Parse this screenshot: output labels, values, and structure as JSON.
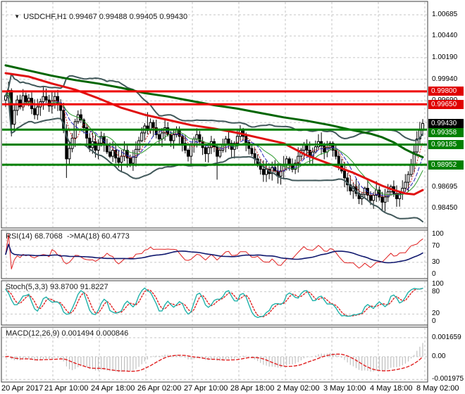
{
  "chart_data": {
    "type": "candlestick",
    "symbol": "USDCHF",
    "timeframe": "H1",
    "title": "USDCHF,H1 0.99467 0.99488 0.99405 0.99430",
    "ohlc_display": {
      "open": "0.99467",
      "high": "0.99488",
      "low": "0.99405",
      "close": "0.99430"
    },
    "x_axis": {
      "labels": [
        "20 Apr 2017",
        "21 Apr 10:00",
        "24 Apr 18:00",
        "26 Apr 02:00",
        "27 Apr 10:00",
        "28 Apr 18:00",
        "2 May 02:00",
        "3 May 10:00",
        "4 May 18:00",
        "8 May 02:00"
      ]
    },
    "y_axis": {
      "tick_labels": [
        "1.00685",
        "1.00440",
        "1.00190",
        "0.99940",
        "0.99690",
        "0.99440",
        "0.99190",
        "0.98940",
        "0.98695",
        "0.98450"
      ],
      "price_top": 1.00839,
      "price_bottom": 0.98222
    },
    "first_open": 0.997,
    "closes": [
      0.9975,
      0.9981,
      0.9942,
      0.9958,
      0.997,
      0.9962,
      0.9975,
      0.9968,
      0.9972,
      0.996,
      0.9953,
      0.9962,
      0.9968,
      0.9974,
      0.997,
      0.9963,
      0.9969,
      0.9974,
      0.9966,
      0.9958,
      0.9935,
      0.9902,
      0.9914,
      0.9926,
      0.9945,
      0.9953,
      0.9947,
      0.9938,
      0.9926,
      0.9915,
      0.9922,
      0.9912,
      0.992,
      0.9928,
      0.9918,
      0.991,
      0.9905,
      0.9912,
      0.9903,
      0.9898,
      0.9905,
      0.9912,
      0.9903,
      0.9897,
      0.9904,
      0.9913,
      0.9923,
      0.9932,
      0.994,
      0.9935,
      0.9944,
      0.9938,
      0.993,
      0.9925,
      0.9932,
      0.9938,
      0.993,
      0.9923,
      0.993,
      0.9936,
      0.9928,
      0.992,
      0.9912,
      0.9905,
      0.9918,
      0.9925,
      0.993,
      0.9922,
      0.9915,
      0.9908,
      0.9915,
      0.9922,
      0.9916,
      0.9905,
      0.9912,
      0.9918,
      0.9925,
      0.992,
      0.9913,
      0.992,
      0.9928,
      0.9935,
      0.9928,
      0.9921,
      0.9914,
      0.9908,
      0.9902,
      0.9896,
      0.989,
      0.9884,
      0.989,
      0.9885,
      0.9892,
      0.9888,
      0.9882,
      0.9888,
      0.9895,
      0.9902,
      0.9896,
      0.989,
      0.9897,
      0.9905,
      0.9912,
      0.9918,
      0.9912,
      0.9905,
      0.991,
      0.9916,
      0.9922,
      0.9917,
      0.991,
      0.9915,
      0.992,
      0.9912,
      0.9905,
      0.9896,
      0.9888,
      0.988,
      0.9872,
      0.9865,
      0.987,
      0.9862,
      0.9856,
      0.9861,
      0.9868,
      0.986,
      0.9854,
      0.986,
      0.9866,
      0.9858,
      0.9852,
      0.9858,
      0.9864,
      0.987,
      0.9862,
      0.9856,
      0.9862,
      0.9868,
      0.9875,
      0.9884,
      0.9896,
      0.991,
      0.9925,
      0.9935,
      0.9943
    ],
    "wick_overrides": {
      "2": {
        "low": 0.9928
      },
      "21": {
        "low": 0.988
      },
      "49": {
        "high": 0.9956
      },
      "73": {
        "low": 0.9878
      },
      "144": {
        "high": 0.9948
      }
    },
    "levels": [
      {
        "price": 0.998,
        "label": "0.99800",
        "type": "resistance"
      },
      {
        "price": 0.9965,
        "label": "0.99650",
        "type": "resistance"
      },
      {
        "price": 0.9943,
        "label": "0.99430",
        "type": "current"
      },
      {
        "price": 0.99358,
        "label": "0.99358",
        "type": "support"
      },
      {
        "price": 0.99185,
        "label": "0.99185",
        "type": "support"
      },
      {
        "price": 0.98952,
        "label": "0.98952",
        "type": "support"
      }
    ],
    "overlays": {
      "bollinger": {
        "period": 34,
        "deviation": 2
      },
      "ma_fast": [
        {
          "period": 5,
          "style": "dotted",
          "color": "#c62828"
        },
        {
          "period": 8,
          "style": "dashed",
          "color": "#2626b8"
        },
        {
          "period": 13,
          "style": "solid",
          "color": "#2f9b2f"
        }
      ],
      "ma_red_anchors": [
        [
          0,
          1.0001
        ],
        [
          8,
          0.9997
        ],
        [
          16,
          0.9989
        ],
        [
          24,
          0.9982
        ],
        [
          32,
          0.9972
        ],
        [
          40,
          0.9961
        ],
        [
          48,
          0.9953
        ],
        [
          56,
          0.9947
        ],
        [
          64,
          0.9941
        ],
        [
          72,
          0.9937
        ],
        [
          80,
          0.9932
        ],
        [
          88,
          0.9926
        ],
        [
          96,
          0.992
        ],
        [
          100,
          0.9913
        ],
        [
          104,
          0.9906
        ],
        [
          112,
          0.9896
        ],
        [
          120,
          0.9886
        ],
        [
          126,
          0.9877
        ],
        [
          130,
          0.9871
        ],
        [
          134,
          0.9866
        ],
        [
          138,
          0.9862
        ],
        [
          141,
          0.9861
        ],
        [
          144,
          0.9866
        ]
      ],
      "ma_green_anchors": [
        [
          0,
          1.001
        ],
        [
          8,
          1.0004
        ],
        [
          16,
          0.9998
        ],
        [
          24,
          0.9993
        ],
        [
          32,
          0.9989
        ],
        [
          40,
          0.9984
        ],
        [
          48,
          0.9978
        ],
        [
          56,
          0.9974
        ],
        [
          64,
          0.9969
        ],
        [
          72,
          0.9964
        ],
        [
          80,
          0.996
        ],
        [
          88,
          0.9955
        ],
        [
          96,
          0.995
        ],
        [
          104,
          0.9946
        ],
        [
          112,
          0.9941
        ],
        [
          120,
          0.9935
        ],
        [
          126,
          0.9931
        ],
        [
          130,
          0.9927
        ],
        [
          134,
          0.9921
        ],
        [
          138,
          0.9913
        ],
        [
          141,
          0.9908
        ],
        [
          144,
          0.9904
        ]
      ]
    },
    "panels": {
      "rsi": {
        "label": "RSI(14) 68.7068  ->MA(18) 60.4773",
        "period": 14,
        "ma_period": 18,
        "ticks": [
          "100",
          "70",
          "30",
          "0"
        ],
        "last": 68.7068,
        "ma_last": 60.4773
      },
      "stoch": {
        "label": "Stoch(5,3,3) 93.8700 91.8227",
        "k": 5,
        "slow": 3,
        "d": 3,
        "ticks": [
          "100",
          "80",
          "20",
          "0"
        ],
        "last_k": 93.87,
        "last_d": 91.8227
      },
      "macd": {
        "label": "MACD(12,26,9) 0.001494 0.000846",
        "fast": 12,
        "slow": 26,
        "signal": 9,
        "ticks": [
          "0.001659",
          "0.00",
          "-0.001975"
        ],
        "tick_values": [
          0.001659,
          0,
          -0.001975
        ],
        "last_main": 0.001494,
        "last_signal": 0.000846
      }
    },
    "colors": {
      "background": "#ffffff",
      "border": "#3c3c3c",
      "grid": "#c6c6c6",
      "candle": "#000000",
      "bollinger": "#41585a",
      "ma_red": "#e01010",
      "ma_green": "#006600",
      "level_resistance": "#ee0000",
      "level_support": "#008000",
      "badge_resistance": "#e00000",
      "badge_support": "#008000",
      "badge_current": "#000000",
      "rsi_line": "#e02020",
      "rsi_ma": "#10186e",
      "stoch_k": "#20b2aa",
      "stoch_d": "#e02020",
      "macd_hist": "#b6b6b6",
      "macd_signal": "#e02020",
      "axis_text": "#000000"
    }
  }
}
